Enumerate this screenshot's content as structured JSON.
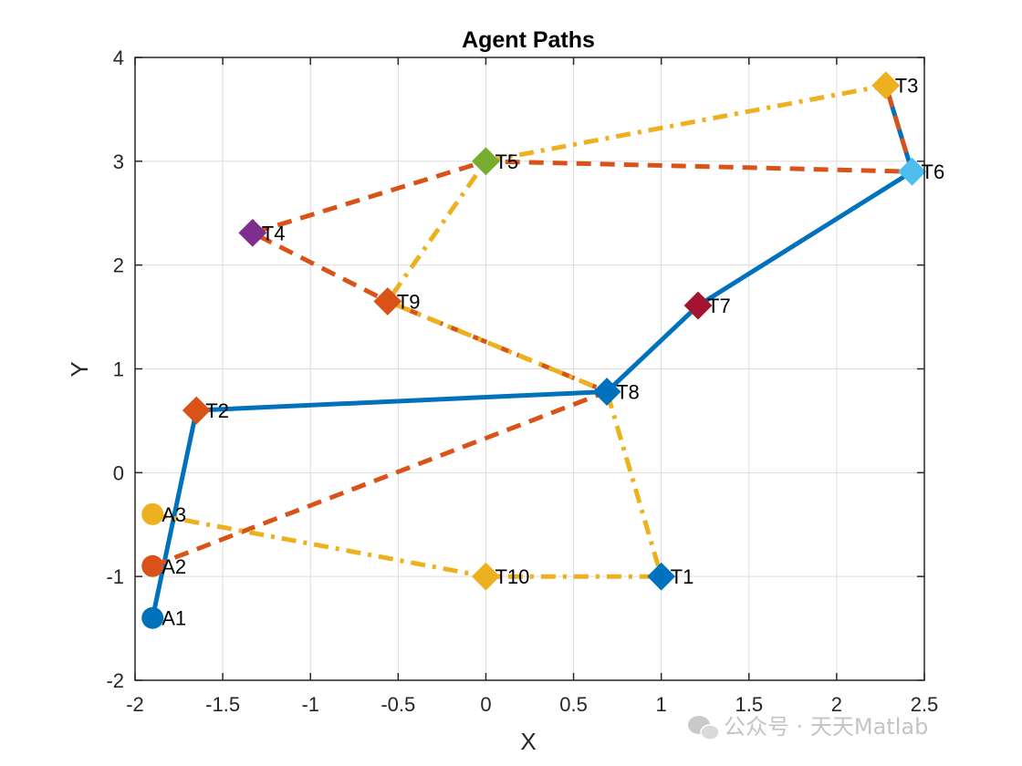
{
  "chart_data": {
    "type": "line",
    "title": "Agent Paths",
    "xlabel": "X",
    "ylabel": "Y",
    "xlim": [
      -2,
      2.5
    ],
    "ylim": [
      -2,
      4
    ],
    "xticks": [
      -2,
      -1.5,
      -1,
      -0.5,
      0,
      0.5,
      1,
      1.5,
      2,
      2.5
    ],
    "xtick_labels": [
      "-2",
      "-1.5",
      "-1",
      "-0.5",
      "0",
      "0.5",
      "1",
      "1.5",
      "2",
      "2.5"
    ],
    "yticks": [
      -2,
      -1,
      0,
      1,
      2,
      3,
      4
    ],
    "ytick_labels": [
      "-2",
      "-1",
      "0",
      "1",
      "2",
      "3",
      "4"
    ],
    "grid": true,
    "agents": [
      {
        "label": "A1",
        "x": -1.9,
        "y": -1.4,
        "color": "#0072BD"
      },
      {
        "label": "A2",
        "x": -1.9,
        "y": -0.9,
        "color": "#D95319"
      },
      {
        "label": "A3",
        "x": -1.9,
        "y": -0.4,
        "color": "#EDB120"
      }
    ],
    "targets": [
      {
        "label": "T1",
        "x": 1.0,
        "y": -1.0,
        "color": "#0072BD"
      },
      {
        "label": "T2",
        "x": -1.65,
        "y": 0.6,
        "color": "#D95319"
      },
      {
        "label": "T3",
        "x": 2.28,
        "y": 3.73,
        "color": "#EDB120"
      },
      {
        "label": "T4",
        "x": -1.33,
        "y": 2.31,
        "color": "#7E2F8E"
      },
      {
        "label": "T5",
        "x": 0.0,
        "y": 3.0,
        "color": "#77AC30"
      },
      {
        "label": "T6",
        "x": 2.43,
        "y": 2.9,
        "color": "#4DBEEE"
      },
      {
        "label": "T7",
        "x": 1.21,
        "y": 1.61,
        "color": "#A2142F"
      },
      {
        "label": "T8",
        "x": 0.69,
        "y": 0.78,
        "color": "#0072BD"
      },
      {
        "label": "T9",
        "x": -0.56,
        "y": 1.65,
        "color": "#D95319"
      },
      {
        "label": "T10",
        "x": 0.0,
        "y": -1.0,
        "color": "#EDB120"
      }
    ],
    "series": [
      {
        "color": "#0072BD",
        "style": "solid",
        "x": [
          -1.9,
          -1.65,
          0.69,
          1.21,
          2.43,
          2.28
        ],
        "y": [
          -1.4,
          0.6,
          0.78,
          1.61,
          2.9,
          3.73
        ]
      },
      {
        "color": "#D95319",
        "style": "dashed",
        "x": [
          -1.9,
          0.69,
          -0.56,
          -1.33,
          0.0,
          2.43,
          2.28
        ],
        "y": [
          -0.9,
          0.78,
          1.65,
          2.31,
          3.0,
          2.9,
          3.73
        ]
      },
      {
        "color": "#EDB120",
        "style": "dashdot",
        "x": [
          -1.9,
          0.0,
          1.0,
          0.69,
          -0.56,
          0.0,
          2.28
        ],
        "y": [
          -0.4,
          -1.0,
          -1.0,
          0.78,
          1.65,
          3.0,
          3.73
        ]
      }
    ]
  },
  "watermark": {
    "text": "公众号 · 天天Matlab",
    "icon": "wechat-icon"
  }
}
